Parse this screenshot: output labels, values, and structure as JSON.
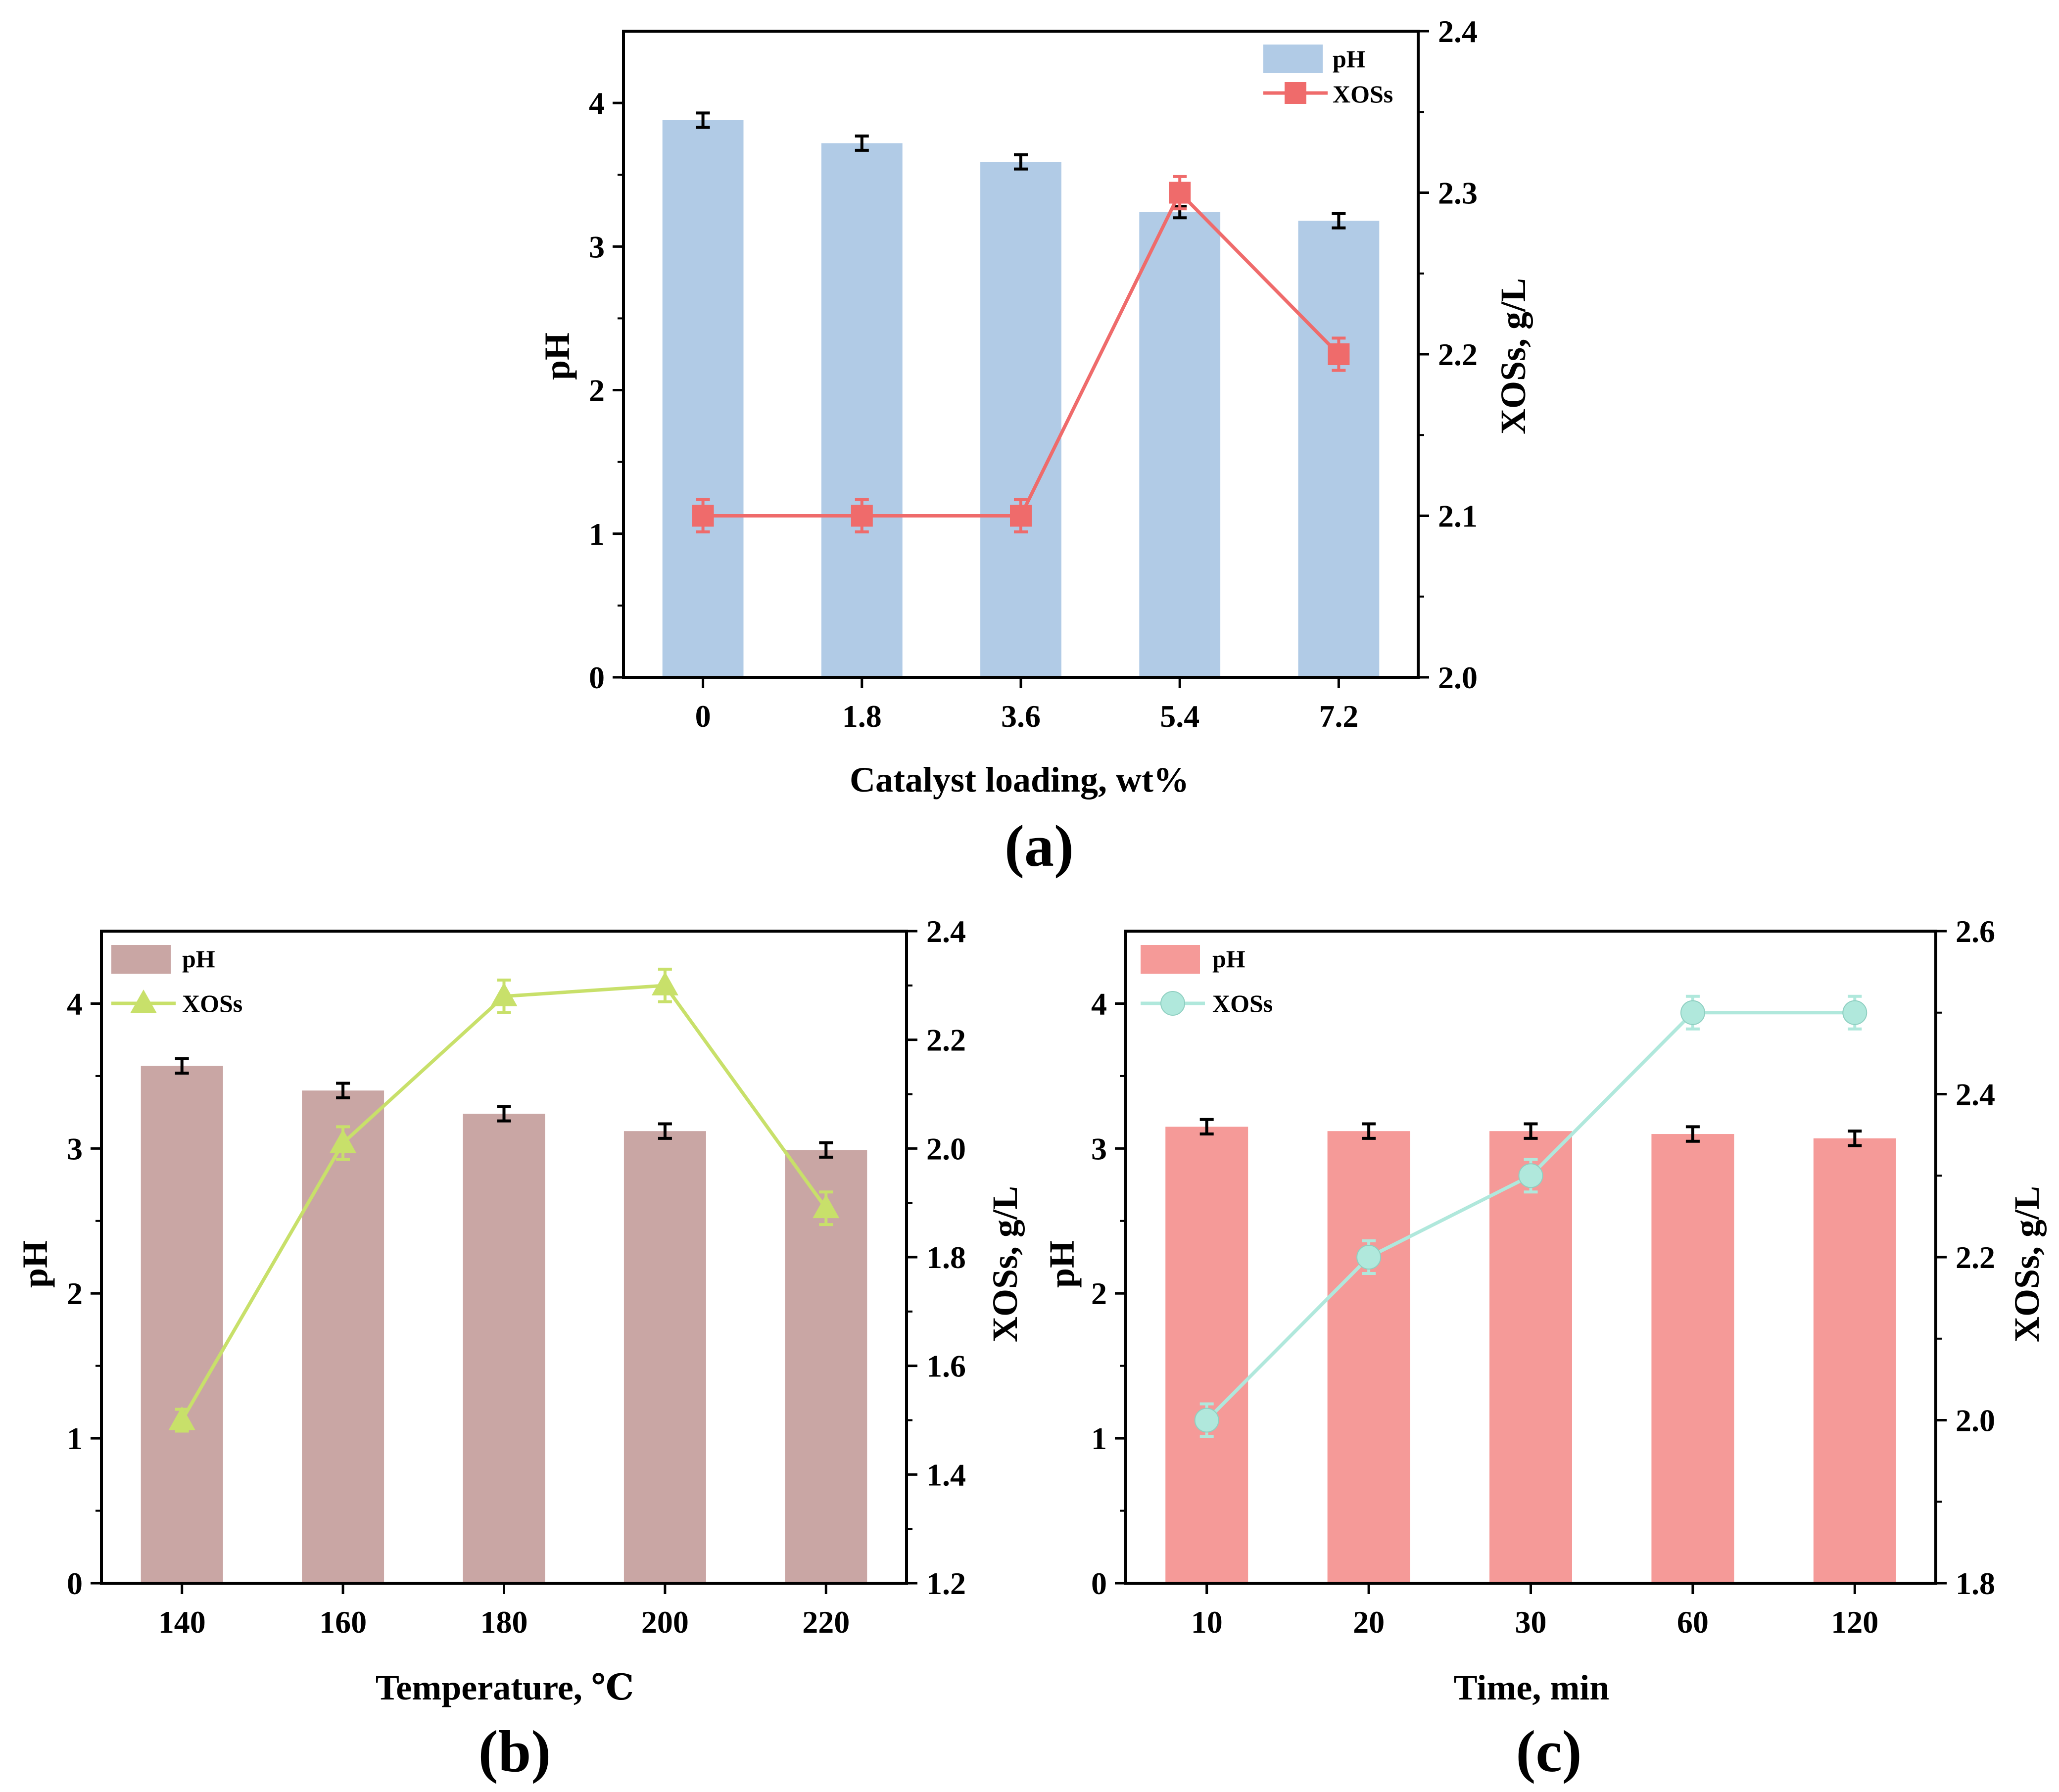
{
  "chart_data": [
    {
      "type": "bar",
      "panel_label": "(a)",
      "xlabel": "Catalyst loading, wt%",
      "ylabel": "pH",
      "y2label": "XOSs, g/L",
      "categories": [
        "0",
        "1.8",
        "3.6",
        "5.4",
        "7.2"
      ],
      "ylim": [
        0,
        4.5
      ],
      "yticks": [
        "0",
        "1",
        "2",
        "3",
        "4"
      ],
      "y2lim": [
        2.0,
        2.4
      ],
      "y2ticks": [
        "2.0",
        "2.1",
        "2.2",
        "2.3",
        "2.4"
      ],
      "legend_position": "top-right",
      "series": [
        {
          "name": "pH",
          "kind": "bar",
          "axis": "left",
          "color": "#b1cbe6",
          "values": [
            3.88,
            3.72,
            3.59,
            3.24,
            3.18
          ],
          "errors": [
            0.05,
            0.05,
            0.05,
            0.04,
            0.05
          ]
        },
        {
          "name": "XOSs",
          "kind": "line",
          "axis": "right",
          "marker": "square",
          "color": "#ef6b6b",
          "values": [
            2.1,
            2.1,
            2.1,
            2.3,
            2.2
          ],
          "errors": [
            0.01,
            0.01,
            0.01,
            0.01,
            0.01
          ]
        }
      ]
    },
    {
      "type": "bar",
      "panel_label": "(b)",
      "xlabel": "Temperature, ℃",
      "ylabel": "pH",
      "y2label": "XOSs, g/L",
      "categories": [
        "140",
        "160",
        "180",
        "200",
        "220"
      ],
      "ylim": [
        0,
        4.5
      ],
      "yticks": [
        "0",
        "1",
        "2",
        "3",
        "4"
      ],
      "y2lim": [
        1.2,
        2.4
      ],
      "y2ticks": [
        "1.2",
        "1.4",
        "1.6",
        "1.8",
        "2.0",
        "2.2",
        "2.4"
      ],
      "legend_position": "top-left",
      "series": [
        {
          "name": "pH",
          "kind": "bar",
          "axis": "left",
          "color": "#c9a6a4",
          "values": [
            3.57,
            3.4,
            3.24,
            3.12,
            2.99
          ],
          "errors": [
            0.05,
            0.05,
            0.05,
            0.05,
            0.05
          ]
        },
        {
          "name": "XOSs",
          "kind": "line",
          "axis": "right",
          "marker": "triangle",
          "color": "#c8e06a",
          "values": [
            1.5,
            2.01,
            2.28,
            2.3,
            1.89
          ],
          "errors": [
            0.02,
            0.03,
            0.03,
            0.03,
            0.03
          ]
        }
      ]
    },
    {
      "type": "bar",
      "panel_label": "(c)",
      "xlabel": "Time, min",
      "ylabel": "pH",
      "y2label": "XOSs, g/L",
      "categories": [
        "10",
        "20",
        "30",
        "60",
        "120"
      ],
      "ylim": [
        0,
        4.5
      ],
      "yticks": [
        "0",
        "1",
        "2",
        "3",
        "4"
      ],
      "y2lim": [
        1.8,
        2.6
      ],
      "y2ticks": [
        "1.8",
        "2.0",
        "2.2",
        "2.4",
        "2.6"
      ],
      "legend_position": "top-left",
      "series": [
        {
          "name": "pH",
          "kind": "bar",
          "axis": "left",
          "color": "#f59a98",
          "values": [
            3.15,
            3.12,
            3.12,
            3.1,
            3.07
          ],
          "errors": [
            0.05,
            0.05,
            0.05,
            0.05,
            0.05
          ]
        },
        {
          "name": "XOSs",
          "kind": "line",
          "axis": "right",
          "marker": "circle",
          "color": "#b0e8dc",
          "values": [
            2.0,
            2.2,
            2.3,
            2.5,
            2.5
          ],
          "errors": [
            0.02,
            0.02,
            0.02,
            0.02,
            0.02
          ]
        }
      ]
    }
  ]
}
